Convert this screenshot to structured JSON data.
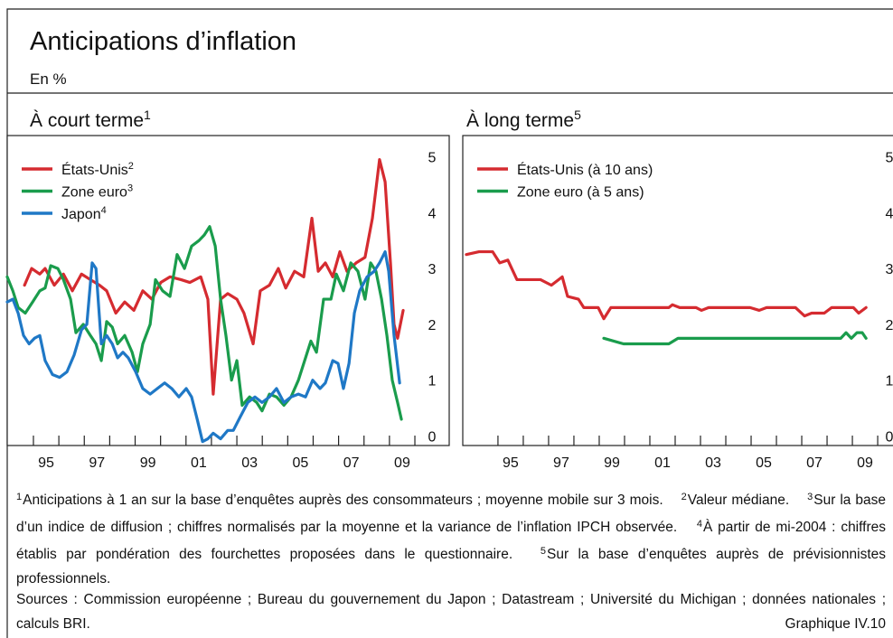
{
  "title": "Anticipations d’inflation",
  "subtitle": "En %",
  "chart_data": [
    {
      "type": "line",
      "title": "À court terme",
      "title_note": "1",
      "xlim": [
        1993.97,
        2011.35
      ],
      "ylim": [
        -0.17,
        5.38
      ],
      "xticks": [
        {
          "value": 1995.5,
          "label": "95"
        },
        {
          "value": 1997.5,
          "label": "97"
        },
        {
          "value": 1999.5,
          "label": "99"
        },
        {
          "value": 2001.5,
          "label": "01"
        },
        {
          "value": 2003.5,
          "label": "03"
        },
        {
          "value": 2005.5,
          "label": "05"
        },
        {
          "value": 2007.5,
          "label": "07"
        },
        {
          "value": 2009.5,
          "label": "09"
        }
      ],
      "xtick_marks": [
        1995,
        1996,
        1997,
        1998,
        1999,
        2000,
        2001,
        2002,
        2003,
        2004,
        2005,
        2006,
        2007,
        2008,
        2009,
        2010
      ],
      "yticks": [
        0,
        1,
        2,
        3,
        4,
        5
      ],
      "legend": "upper left",
      "series": [
        {
          "name": "États-Unis",
          "note": "2",
          "color": "#d52b30",
          "x": [
            1994.65,
            1994.93,
            1995.25,
            1995.46,
            1995.82,
            1996.18,
            1996.53,
            1996.89,
            1997.24,
            1997.6,
            1997.88,
            1998.24,
            1998.59,
            1998.95,
            1999.3,
            1999.66,
            2000.01,
            2000.37,
            2000.8,
            2001.15,
            2001.58,
            2001.86,
            2002.07,
            2002.36,
            2002.64,
            2003.0,
            2003.28,
            2003.64,
            2003.92,
            2004.28,
            2004.63,
            2004.92,
            2005.27,
            2005.63,
            2005.95,
            2006.2,
            2006.48,
            2006.77,
            2007.05,
            2007.33,
            2007.69,
            2008.04,
            2008.33,
            2008.61,
            2008.83,
            2009.04,
            2009.18,
            2009.32,
            2009.54
          ],
          "values": [
            2.7,
            3.0,
            2.9,
            3.0,
            2.7,
            2.9,
            2.6,
            2.9,
            2.8,
            2.7,
            2.6,
            2.2,
            2.4,
            2.25,
            2.6,
            2.45,
            2.75,
            2.85,
            2.8,
            2.75,
            2.85,
            2.45,
            0.75,
            2.45,
            2.55,
            2.45,
            2.2,
            1.65,
            2.6,
            2.7,
            3.0,
            2.65,
            2.95,
            2.85,
            3.9,
            2.95,
            3.1,
            2.85,
            3.3,
            2.95,
            3.1,
            3.2,
            3.9,
            4.95,
            4.55,
            3.1,
            2.0,
            1.75,
            2.25
          ]
        },
        {
          "name": "Zone euro",
          "note": "3",
          "color": "#1a9c4c",
          "x": [
            1993.97,
            1994.19,
            1994.4,
            1994.68,
            1994.97,
            1995.25,
            1995.46,
            1995.68,
            1995.96,
            1996.18,
            1996.46,
            1996.67,
            1996.96,
            1997.24,
            1997.46,
            1997.67,
            1997.88,
            1998.1,
            1998.31,
            1998.59,
            1998.88,
            1999.09,
            1999.3,
            1999.59,
            1999.8,
            2000.08,
            2000.37,
            2000.65,
            2000.94,
            2001.22,
            2001.51,
            2001.72,
            2001.93,
            2002.15,
            2002.36,
            2002.57,
            2002.79,
            2003.0,
            2003.21,
            2003.5,
            2003.78,
            2003.99,
            2004.28,
            2004.56,
            2004.85,
            2005.13,
            2005.42,
            2005.7,
            2005.91,
            2006.13,
            2006.41,
            2006.7,
            2006.91,
            2007.19,
            2007.48,
            2007.76,
            2008.04,
            2008.26,
            2008.47,
            2008.69,
            2008.9,
            2009.11,
            2009.32,
            2009.47
          ],
          "values": [
            2.85,
            2.6,
            2.3,
            2.2,
            2.4,
            2.6,
            2.65,
            3.05,
            3.0,
            2.8,
            2.45,
            1.85,
            2.0,
            1.8,
            1.65,
            1.35,
            2.05,
            1.95,
            1.65,
            1.8,
            1.5,
            1.15,
            1.65,
            2.0,
            2.8,
            2.6,
            2.5,
            3.25,
            3.0,
            3.4,
            3.5,
            3.6,
            3.75,
            3.4,
            2.45,
            1.8,
            1.0,
            1.35,
            0.55,
            0.7,
            0.6,
            0.45,
            0.75,
            0.7,
            0.55,
            0.7,
            1.0,
            1.4,
            1.7,
            1.5,
            2.45,
            2.45,
            2.9,
            2.6,
            3.1,
            2.95,
            2.45,
            3.1,
            2.95,
            2.45,
            1.8,
            1.0,
            0.6,
            0.3
          ]
        },
        {
          "name": "Japon",
          "note": "4",
          "color": "#1f78c6",
          "x": [
            1993.97,
            1994.19,
            1994.4,
            1994.61,
            1994.83,
            1995.04,
            1995.25,
            1995.46,
            1995.75,
            1996.03,
            1996.32,
            1996.6,
            1996.89,
            1997.1,
            1997.31,
            1997.46,
            1997.67,
            1997.88,
            1998.1,
            1998.31,
            1998.52,
            1998.73,
            1999.02,
            1999.3,
            1999.59,
            1999.87,
            2000.16,
            2000.44,
            2000.72,
            2001.01,
            2001.22,
            2001.44,
            2001.65,
            2001.86,
            2002.07,
            2002.36,
            2002.64,
            2002.86,
            2003.14,
            2003.43,
            2003.71,
            2003.99,
            2004.28,
            2004.56,
            2004.85,
            2005.13,
            2005.42,
            2005.7,
            2005.98,
            2006.27,
            2006.48,
            2006.77,
            2006.98,
            2007.19,
            2007.41,
            2007.62,
            2007.83,
            2008.12,
            2008.4,
            2008.61,
            2008.83,
            2008.97,
            2009.18,
            2009.4
          ],
          "values": [
            2.4,
            2.45,
            2.2,
            1.8,
            1.65,
            1.75,
            1.8,
            1.35,
            1.1,
            1.05,
            1.15,
            1.45,
            1.9,
            2.0,
            3.1,
            3.0,
            1.65,
            1.8,
            1.65,
            1.4,
            1.5,
            1.4,
            1.15,
            0.85,
            0.75,
            0.85,
            0.95,
            0.85,
            0.7,
            0.85,
            0.7,
            0.3,
            -0.1,
            -0.05,
            0.05,
            -0.05,
            0.1,
            0.1,
            0.35,
            0.6,
            0.7,
            0.6,
            0.7,
            0.85,
            0.6,
            0.7,
            0.75,
            0.7,
            1.0,
            0.85,
            0.95,
            1.35,
            1.3,
            0.85,
            1.3,
            2.2,
            2.6,
            2.85,
            2.95,
            3.1,
            3.3,
            2.95,
            1.8,
            0.95
          ]
        }
      ]
    },
    {
      "type": "line",
      "title": "À long terme",
      "title_note": "5",
      "xlim": [
        1993.61,
        2011.14
      ],
      "ylim": [
        -0.17,
        5.38
      ],
      "xticks": [
        {
          "value": 1995.5,
          "label": "95"
        },
        {
          "value": 1997.5,
          "label": "97"
        },
        {
          "value": 1999.5,
          "label": "99"
        },
        {
          "value": 2001.5,
          "label": "01"
        },
        {
          "value": 2003.5,
          "label": "03"
        },
        {
          "value": 2005.5,
          "label": "05"
        },
        {
          "value": 2007.5,
          "label": "07"
        },
        {
          "value": 2009.5,
          "label": "09"
        }
      ],
      "xtick_marks": [
        1995,
        1996,
        1997,
        1998,
        1999,
        2000,
        2001,
        2002,
        2003,
        2004,
        2005,
        2006,
        2007,
        2008,
        2009,
        2010
      ],
      "yticks": [
        0,
        1,
        2,
        3,
        4,
        5
      ],
      "legend": "upper left",
      "series": [
        {
          "name": "États-Unis (à 10 ans)",
          "color": "#d52b30",
          "x": [
            1993.75,
            1994.25,
            1994.79,
            1995.07,
            1995.39,
            1995.75,
            1996.68,
            1997.11,
            1997.54,
            1997.75,
            1998.18,
            1998.39,
            1998.96,
            1999.18,
            1999.46,
            2001.75,
            2001.89,
            2002.18,
            2002.82,
            2003.04,
            2003.32,
            2004.96,
            2005.32,
            2005.61,
            2006.75,
            2007.11,
            2007.39,
            2007.89,
            2008.18,
            2009.04,
            2009.25,
            2009.54
          ],
          "values": [
            3.25,
            3.3,
            3.3,
            3.1,
            3.15,
            2.8,
            2.8,
            2.7,
            2.85,
            2.5,
            2.45,
            2.3,
            2.3,
            2.1,
            2.3,
            2.3,
            2.35,
            2.3,
            2.3,
            2.25,
            2.3,
            2.3,
            2.25,
            2.3,
            2.3,
            2.15,
            2.2,
            2.2,
            2.3,
            2.3,
            2.2,
            2.3
          ]
        },
        {
          "name": "Zone euro (à 5 ans)",
          "color": "#1a9c4c",
          "x": [
            1999.18,
            1999.96,
            2001.75,
            2002.11,
            2008.54,
            2008.75,
            2008.96,
            2009.18,
            2009.39,
            2009.54
          ],
          "values": [
            1.75,
            1.65,
            1.65,
            1.75,
            1.75,
            1.85,
            1.75,
            1.85,
            1.85,
            1.75
          ]
        }
      ]
    }
  ],
  "footnotes": [
    {
      "mark": "1",
      "text": "Anticipations à 1 an sur la base d’enquêtes auprès des consommateurs ; moyenne mobile sur 3 mois."
    },
    {
      "mark": "2",
      "text": "Valeur médiane."
    },
    {
      "mark": "3",
      "text": "Sur la base d’un indice de diffusion ; chiffres normalisés par la moyenne et la variance de l’inflation IPCH observée."
    },
    {
      "mark": "4",
      "text": "À partir de mi-2004 : chiffres établis par pondération des fourchettes proposées dans le questionnaire."
    },
    {
      "mark": "5",
      "text": "Sur la base d’enquêtes auprès de prévisionnistes professionnels."
    }
  ],
  "sources": "Sources : Commission européenne ; Bureau du gouvernement du Japon ; Datastream ; Université du Michigan ; données nationales ; calculs BRI.",
  "figure_label": "Graphique IV.10"
}
